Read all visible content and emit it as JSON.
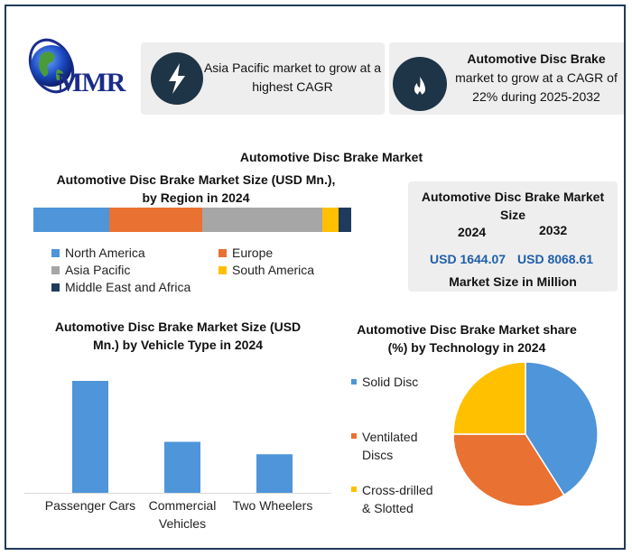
{
  "logo": {
    "text": "MMR"
  },
  "cards": [
    {
      "icon": "lightning-icon",
      "text": "Asia Pacific market to grow at a highest CAGR"
    },
    {
      "icon": "flame-icon",
      "title": "Automotive Disc Brake",
      "text": "market to grow at a CAGR of 22% during 2025-2032"
    }
  ],
  "main_title": "Automotive Disc Brake Market",
  "region_chart": {
    "title_line1": "Automotive Disc Brake Market Size (USD Mn.),",
    "title_line2": "by Region in 2024"
  },
  "size_card": {
    "title": "Automotive Disc Brake Market Size",
    "year1": "2024",
    "year2": "2032",
    "value1": "USD 1644.07",
    "value2": "USD 8068.61",
    "footer": "Market Size in Million"
  },
  "vehicle_chart": {
    "title_line1": "Automotive Disc Brake Market Size (USD",
    "title_line2": "Mn.) by Vehicle Type in 2024"
  },
  "tech_chart": {
    "title_line1": "Automotive Disc Brake Market share",
    "title_line2": "(%) by Technology in 2024"
  },
  "chart_data": [
    {
      "type": "bar",
      "orientation": "horizontal-stacked",
      "title": "Automotive Disc Brake Market Size (USD Mn.), by Region in 2024",
      "categories": [
        "North America",
        "Europe",
        "Asia Pacific",
        "South America",
        "Middle East and Africa"
      ],
      "values": [
        24,
        29,
        38,
        5,
        4
      ],
      "colors": [
        "#4e95d9",
        "#e97132",
        "#a6a6a6",
        "#ffc000",
        "#1f3b5c"
      ],
      "legend": "bottom"
    },
    {
      "type": "bar",
      "title": "Automotive Disc Brake Market Size (USD Mn.) by Vehicle Type in 2024",
      "categories": [
        "Passenger Cars",
        "Commercial Vehicles",
        "Two Wheelers"
      ],
      "values": [
        100,
        46,
        35
      ],
      "color": "#4e95d9",
      "xlabel": "",
      "ylabel": ""
    },
    {
      "type": "pie",
      "title": "Automotive Disc Brake Market share (%) by Technology in 2024",
      "categories": [
        "Solid Disc",
        "Ventilated Discs",
        "Cross-drilled & Slotted"
      ],
      "values": [
        41,
        34,
        25
      ],
      "colors": [
        "#4e95d9",
        "#e97132",
        "#ffc000"
      ],
      "legend": "left"
    }
  ]
}
